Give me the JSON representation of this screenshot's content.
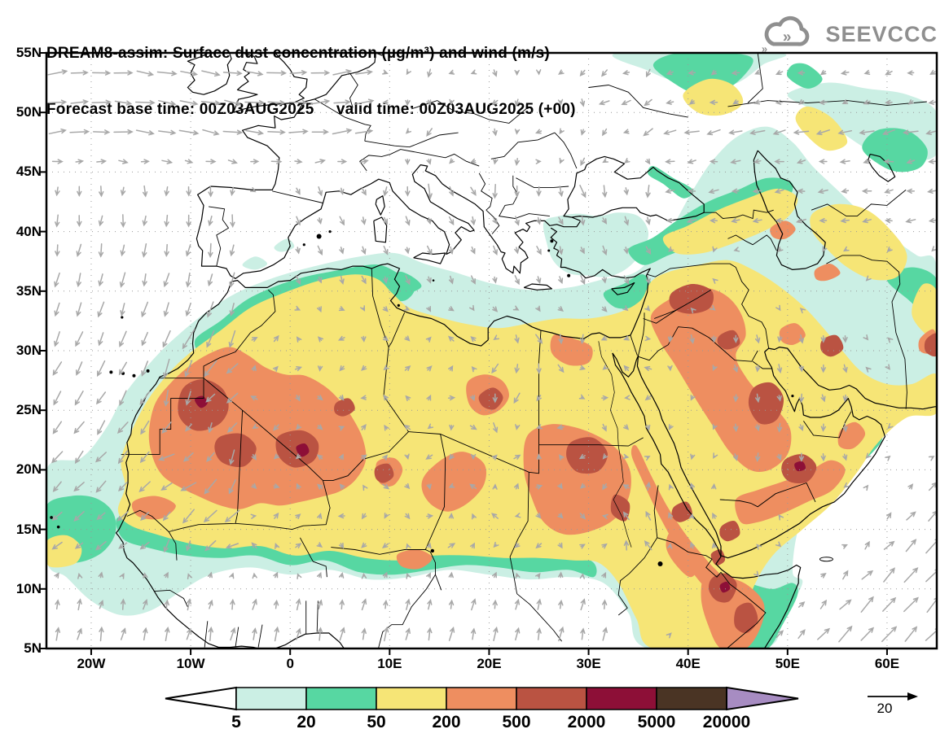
{
  "title": {
    "line1": "DREAM8-assim: Surface dust concentration (µg/m³) and wind (m/s)",
    "line2": "Forecast base time: 00Z03AUG2025     valid time: 00Z03AUG2025 (+00)"
  },
  "logo": {
    "text": "SEEVCCC",
    "color": "#8f8f8f"
  },
  "axes": {
    "lat_labels": [
      "55N",
      "50N",
      "45N",
      "40N",
      "35N",
      "30N",
      "25N",
      "20N",
      "15N",
      "10N",
      "5N"
    ],
    "lon_labels": [
      "20W",
      "10W",
      "0",
      "10E",
      "20E",
      "30E",
      "40E",
      "50E",
      "60E"
    ]
  },
  "legend": {
    "values": [
      "5",
      "20",
      "50",
      "200",
      "500",
      "2000",
      "5000",
      "20000"
    ],
    "band_colors": [
      "#cbefe4",
      "#57d7a2",
      "#f6e576",
      "#ee8e60",
      "#ba5342",
      "#8d0f37",
      "#4a3424"
    ],
    "overflow_color": "#a78cc2",
    "underflow_color": "#ffffff"
  },
  "wind_reference": {
    "label": "20",
    "units": "m/s"
  },
  "map_style": {
    "coast_color": "#000000",
    "border_color": "#000000",
    "arrow_color": "#a8a8a8",
    "grid_color": "#999999",
    "background": "#ffffff"
  },
  "chart_data": {
    "type": "filled-contour-map",
    "model": "DREAM8-assim",
    "variable": "surface dust concentration",
    "variable_units": "µg/m³",
    "wind_units": "m/s",
    "forecast_base_time": "00Z03AUG2025",
    "valid_time": "00Z03AUG2025",
    "lead": "+00",
    "contour_levels": [
      5,
      20,
      50,
      200,
      500,
      2000,
      5000,
      20000
    ],
    "palette": [
      "#cbefe4",
      "#57d7a2",
      "#f6e576",
      "#ee8e60",
      "#ba5342",
      "#8d0f37",
      "#4a3424",
      "#a78cc2"
    ],
    "lon_range_deg": [
      -24.5,
      65
    ],
    "lat_range_deg": [
      5,
      55
    ],
    "lat_ticks": [
      "55N",
      "50N",
      "45N",
      "40N",
      "35N",
      "30N",
      "25N",
      "20N",
      "15N",
      "10N",
      "5N"
    ],
    "lon_ticks": [
      "20W",
      "10W",
      "0",
      "10E",
      "20E",
      "30E",
      "40E",
      "50E",
      "60E"
    ],
    "grid_lines": "dotted, 5 deg latitude / 10 deg longitude",
    "wind_reference_ms": 20,
    "high_dust_cores": [
      "Western Sahara / Mauritania",
      "N Mali / S Algeria",
      "SE Algeria / SW Libya",
      "S Egypt / N Sudan",
      "Syrian desert / Iraq",
      "E Saudi Arabia / Rub al Khali",
      "Afar and N Somalia (Horn of Africa)",
      "SE Iran (map edge)"
    ]
  }
}
